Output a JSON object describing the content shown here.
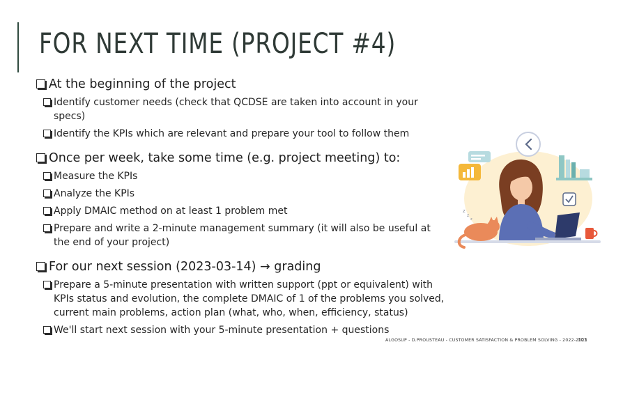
{
  "slide": {
    "title": "FOR NEXT TIME (PROJECT #4)",
    "sections": [
      {
        "heading": "At the beginning of the project",
        "items": [
          "Identify customer needs (check that QCDSE are taken into account in your specs)",
          "Identify the KPIs which are relevant and prepare your tool to follow them"
        ]
      },
      {
        "heading": "Once per week, take some time (e.g. project meeting) to:",
        "items": [
          "Measure the KPIs",
          "Analyze the KPIs",
          "Apply DMAIC method on at least 1 problem met",
          "Prepare and write a 2-minute management summary (it will also be useful at the end of your project)"
        ]
      },
      {
        "heading": "For our next session (2023-03-14) → grading",
        "items": [
          "Prepare a 5-minute presentation with written support (ppt or equivalent) with KPIs status and evolution, the complete DMAIC of 1 of the problems you solved, current main problems, action plan (what, who, when, efficiency, status)",
          "We'll start next session with your 5-minute presentation + questions"
        ]
      }
    ],
    "footer": "ALGOSUP - D.PROUSTEAU - CUSTOMER SATISFACTION & PROBLEM SOLVING - 2022-2023",
    "page_number": "101",
    "colors": {
      "accent": "#2f4a3f",
      "illustration_skin": "#f5c9a8",
      "illustration_sweater": "#5b6fb5"
    },
    "icons": [
      "checkbox-bullet-icon",
      "back-arrow-icon",
      "bar-chart-icon",
      "check-mark-icon",
      "sleeping-cat-icon",
      "laptop-icon",
      "coffee-mug-icon"
    ]
  }
}
